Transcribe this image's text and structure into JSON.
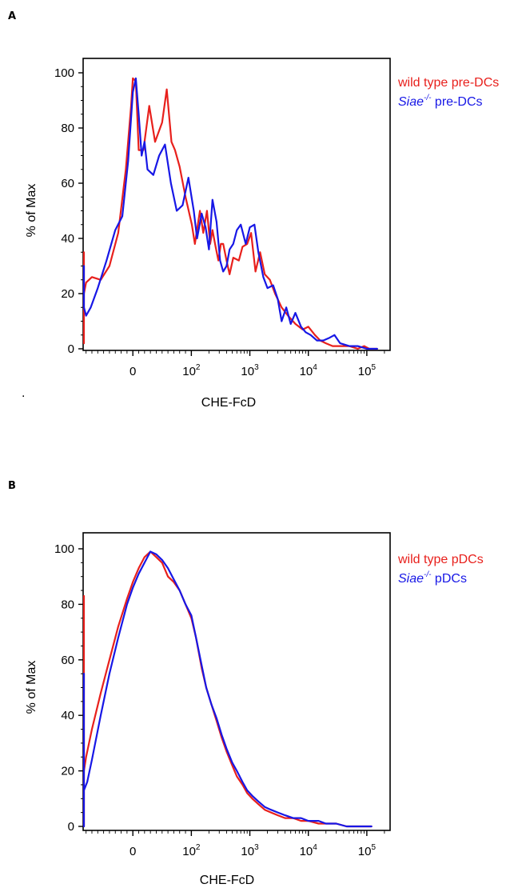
{
  "chart_data": [
    {
      "panel": "A",
      "type": "line",
      "xlabel": "CHE-FcD",
      "ylabel": "% of Max",
      "x_scale": "biexponential",
      "x_ticks": [
        "0",
        "10",
        "10",
        "10",
        "10"
      ],
      "x_tick_exponents": [
        "",
        "2",
        "3",
        "4",
        "5"
      ],
      "ylim": [
        0,
        100
      ],
      "y_ticks": [
        "0",
        "20",
        "40",
        "60",
        "80",
        "100"
      ],
      "grid": false,
      "legend_position": "right",
      "series": [
        {
          "name": "wild type pre-DCs",
          "color": "#e8201c",
          "x": [
            -90,
            -88,
            -87,
            -85,
            -80,
            -70,
            -55,
            -40,
            -25,
            -12,
            -3,
            0,
            5,
            10,
            18,
            28,
            38,
            50,
            58,
            66,
            72,
            80,
            90,
            102,
            115,
            140,
            160,
            185,
            210,
            230,
            260,
            290,
            320,
            350,
            400,
            450,
            520,
            650,
            750,
            900,
            1050,
            1250,
            1500,
            1800,
            2200,
            2700,
            3500,
            4500,
            6000,
            8000,
            10000,
            13000,
            16000,
            20000,
            26000,
            35000,
            50000,
            70000,
            90000,
            110000,
            150000
          ],
          "y": [
            2,
            35,
            2,
            20,
            24,
            26,
            25,
            30,
            42,
            65,
            88,
            98,
            97,
            72,
            72,
            88,
            75,
            82,
            94,
            75,
            72,
            66,
            55,
            45,
            38,
            50,
            42,
            50,
            38,
            43,
            37,
            32,
            38,
            38,
            32,
            27,
            33,
            32,
            37,
            38,
            42,
            28,
            35,
            27,
            25,
            20,
            15,
            12,
            9,
            7,
            8,
            5,
            3,
            2,
            1,
            1,
            1,
            0,
            1,
            0,
            0
          ]
        },
        {
          "name": "Siae-/- pre-DCs",
          "color": "#1717e6",
          "x": [
            -90,
            -85,
            -80,
            -72,
            -60,
            -45,
            -30,
            -18,
            -8,
            0,
            5,
            10,
            15,
            20,
            25,
            35,
            45,
            55,
            65,
            75,
            85,
            95,
            110,
            125,
            150,
            175,
            200,
            230,
            270,
            310,
            350,
            400,
            450,
            520,
            600,
            700,
            850,
            1000,
            1200,
            1400,
            1700,
            2000,
            2500,
            3000,
            3500,
            4200,
            5000,
            6000,
            7500,
            9000,
            11000,
            14000,
            18000,
            23000,
            28000,
            35000,
            50000,
            70000,
            100000,
            150000
          ],
          "y": [
            30,
            15,
            12,
            15,
            22,
            32,
            43,
            48,
            68,
            93,
            98,
            85,
            70,
            75,
            65,
            63,
            70,
            74,
            60,
            50,
            52,
            62,
            50,
            40,
            49,
            44,
            36,
            54,
            46,
            32,
            28,
            30,
            36,
            38,
            43,
            45,
            38,
            44,
            45,
            35,
            26,
            22,
            23,
            18,
            10,
            15,
            9,
            13,
            8,
            6,
            5,
            3,
            3,
            4,
            5,
            2,
            1,
            1,
            0,
            0
          ]
        }
      ]
    },
    {
      "panel": "B",
      "type": "line",
      "xlabel": "CHE-FcD",
      "ylabel": "% of Max",
      "x_scale": "biexponential",
      "x_ticks": [
        "0",
        "10",
        "10",
        "10",
        "10"
      ],
      "x_tick_exponents": [
        "",
        "2",
        "3",
        "4",
        "5"
      ],
      "ylim": [
        0,
        100
      ],
      "y_ticks": [
        "0",
        "20",
        "40",
        "60",
        "80",
        "100"
      ],
      "grid": false,
      "legend_position": "right",
      "series": [
        {
          "name": "wild type pDCs",
          "color": "#e8201c",
          "x": [
            -90,
            -89,
            -88,
            -86,
            -80,
            -70,
            -55,
            -40,
            -25,
            -10,
            0,
            10,
            20,
            30,
            40,
            50,
            60,
            70,
            80,
            90,
            100,
            120,
            150,
            180,
            220,
            270,
            330,
            400,
            500,
            600,
            750,
            900,
            1100,
            1400,
            1800,
            2300,
            3000,
            4000,
            5500,
            7500,
            10000,
            15000,
            20000,
            30000,
            45000,
            60000,
            80000,
            120000
          ],
          "y": [
            0,
            83,
            40,
            20,
            25,
            35,
            48,
            60,
            72,
            82,
            88,
            93,
            97,
            99,
            97,
            95,
            90,
            88,
            85,
            80,
            75,
            68,
            57,
            50,
            44,
            38,
            32,
            27,
            22,
            18,
            15,
            12,
            10,
            8,
            6,
            5,
            4,
            3,
            3,
            2,
            2,
            1,
            1,
            1,
            0,
            0,
            0,
            0
          ]
        },
        {
          "name": "Siae-/- pDCs",
          "color": "#1717e6",
          "x": [
            -90,
            -89,
            -87,
            -84,
            -78,
            -70,
            -55,
            -40,
            -25,
            -10,
            0,
            10,
            20,
            30,
            40,
            50,
            60,
            70,
            80,
            90,
            100,
            120,
            150,
            180,
            220,
            270,
            330,
            400,
            500,
            600,
            750,
            900,
            1100,
            1400,
            1800,
            2300,
            3000,
            4000,
            5500,
            7500,
            10000,
            15000,
            20000,
            30000,
            45000,
            60000,
            80000,
            120000
          ],
          "y": [
            0,
            55,
            25,
            13,
            16,
            24,
            40,
            55,
            68,
            80,
            86,
            91,
            95,
            99,
            98,
            96,
            93,
            89,
            85,
            80,
            76,
            68,
            58,
            50,
            44,
            39,
            33,
            28,
            23,
            20,
            16,
            13,
            11,
            9,
            7,
            6,
            5,
            4,
            3,
            3,
            2,
            2,
            1,
            1,
            0,
            0,
            0,
            0
          ]
        }
      ]
    }
  ],
  "panels": [
    {
      "letter": "A",
      "legend": [
        {
          "prefix": "wild type pre-DCs",
          "sup": "",
          "suffix": ""
        },
        {
          "prefix": "Siae",
          "sup": "-/-",
          "suffix": " pre-DCs"
        }
      ]
    },
    {
      "letter": "B",
      "legend": [
        {
          "prefix": "wild type pDCs",
          "sup": "",
          "suffix": ""
        },
        {
          "prefix": "Siae",
          "sup": "-/-",
          "suffix": " pDCs"
        }
      ]
    }
  ],
  "stray_mark": "."
}
